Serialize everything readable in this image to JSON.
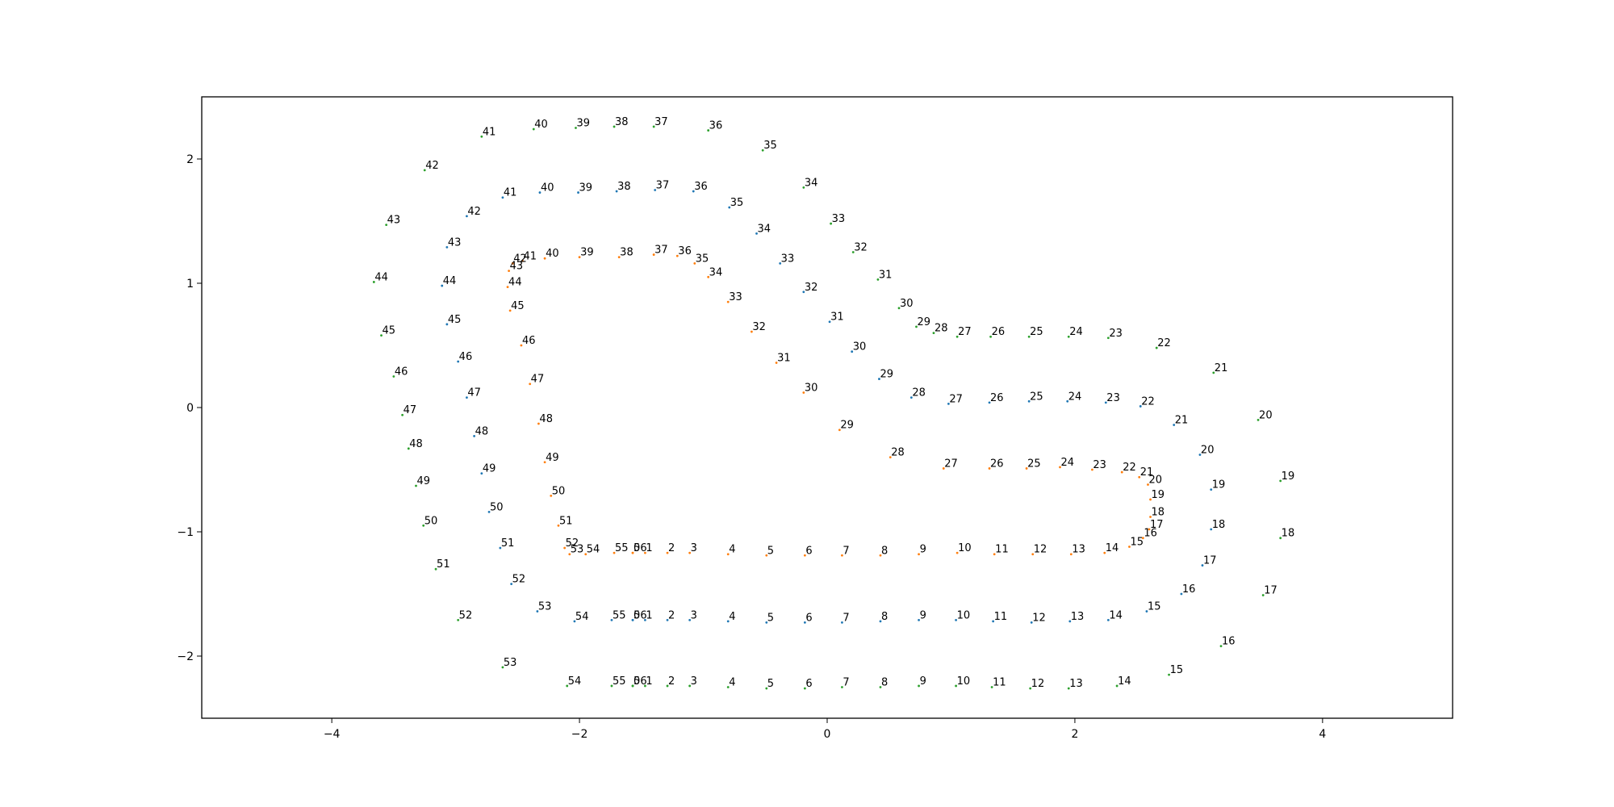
{
  "chart_data": {
    "type": "scatter",
    "title": "",
    "xlabel": "",
    "ylabel": "",
    "xlim": [
      -5.05,
      5.05
    ],
    "ylim": [
      -2.5,
      2.5
    ],
    "xticks": [
      -4,
      -2,
      0,
      2,
      4
    ],
    "yticks": [
      -2,
      -1,
      0,
      1,
      2
    ],
    "grid": false,
    "legend": false,
    "series": [
      {
        "color": "#ff7f0e",
        "points": [
          [
            -1.47,
            -1.17,
            "1"
          ],
          [
            -1.29,
            -1.17,
            "2"
          ],
          [
            -1.11,
            -1.17,
            "3"
          ],
          [
            -0.8,
            -1.18,
            "4"
          ],
          [
            -0.49,
            -1.19,
            "5"
          ],
          [
            -0.18,
            -1.19,
            "6"
          ],
          [
            0.12,
            -1.19,
            "7"
          ],
          [
            0.43,
            -1.19,
            "8"
          ],
          [
            0.74,
            -1.18,
            "9"
          ],
          [
            1.05,
            -1.17,
            "10"
          ],
          [
            1.35,
            -1.18,
            "11"
          ],
          [
            1.66,
            -1.18,
            "12"
          ],
          [
            1.97,
            -1.18,
            "13"
          ],
          [
            2.24,
            -1.17,
            "14"
          ],
          [
            2.44,
            -1.12,
            "15"
          ],
          [
            2.55,
            -1.05,
            "16"
          ],
          [
            2.6,
            -0.98,
            "17"
          ],
          [
            2.61,
            -0.88,
            "18"
          ],
          [
            2.61,
            -0.74,
            "19"
          ],
          [
            2.59,
            -0.62,
            "20"
          ],
          [
            2.52,
            -0.56,
            "21"
          ],
          [
            2.38,
            -0.52,
            "22"
          ],
          [
            2.14,
            -0.5,
            "23"
          ],
          [
            1.88,
            -0.48,
            "24"
          ],
          [
            1.61,
            -0.49,
            "25"
          ],
          [
            1.31,
            -0.49,
            "26"
          ],
          [
            0.94,
            -0.49,
            "27"
          ],
          [
            0.51,
            -0.4,
            "28"
          ],
          [
            0.1,
            -0.18,
            "29"
          ],
          [
            -0.19,
            0.12,
            "30"
          ],
          [
            -0.41,
            0.36,
            "31"
          ],
          [
            -0.61,
            0.61,
            "32"
          ],
          [
            -0.8,
            0.85,
            "33"
          ],
          [
            -0.96,
            1.05,
            "34"
          ],
          [
            -1.07,
            1.16,
            "35"
          ],
          [
            -1.21,
            1.22,
            "36"
          ],
          [
            -1.4,
            1.23,
            "37"
          ],
          [
            -1.68,
            1.21,
            "38"
          ],
          [
            -2.0,
            1.21,
            "39"
          ],
          [
            -2.28,
            1.2,
            "40"
          ],
          [
            -2.46,
            1.18,
            "41"
          ],
          [
            -2.54,
            1.16,
            "42"
          ],
          [
            -2.57,
            1.1,
            "43"
          ],
          [
            -2.58,
            0.97,
            "44"
          ],
          [
            -2.56,
            0.78,
            "45"
          ],
          [
            -2.47,
            0.5,
            "46"
          ],
          [
            -2.4,
            0.19,
            "47"
          ],
          [
            -2.33,
            -0.13,
            "48"
          ],
          [
            -2.28,
            -0.44,
            "49"
          ],
          [
            -2.23,
            -0.71,
            "50"
          ],
          [
            -2.17,
            -0.95,
            "51"
          ],
          [
            -2.12,
            -1.13,
            "52"
          ],
          [
            -2.08,
            -1.18,
            "53"
          ],
          [
            -1.95,
            -1.18,
            "54"
          ],
          [
            -1.72,
            -1.17,
            "55"
          ],
          [
            -1.57,
            -1.17,
            "56"
          ],
          [
            -1.57,
            -1.17,
            "0"
          ]
        ]
      },
      {
        "color": "#1f77b4",
        "points": [
          [
            -1.47,
            -1.71,
            "1"
          ],
          [
            -1.29,
            -1.71,
            "2"
          ],
          [
            -1.11,
            -1.71,
            "3"
          ],
          [
            -0.8,
            -1.72,
            "4"
          ],
          [
            -0.49,
            -1.73,
            "5"
          ],
          [
            -0.18,
            -1.73,
            "6"
          ],
          [
            0.12,
            -1.73,
            "7"
          ],
          [
            0.43,
            -1.72,
            "8"
          ],
          [
            0.74,
            -1.71,
            "9"
          ],
          [
            1.04,
            -1.71,
            "10"
          ],
          [
            1.34,
            -1.72,
            "11"
          ],
          [
            1.65,
            -1.73,
            "12"
          ],
          [
            1.96,
            -1.72,
            "13"
          ],
          [
            2.27,
            -1.71,
            "14"
          ],
          [
            2.58,
            -1.64,
            "15"
          ],
          [
            2.86,
            -1.5,
            "16"
          ],
          [
            3.03,
            -1.27,
            "17"
          ],
          [
            3.1,
            -0.98,
            "18"
          ],
          [
            3.1,
            -0.66,
            "19"
          ],
          [
            3.01,
            -0.38,
            "20"
          ],
          [
            2.8,
            -0.14,
            "21"
          ],
          [
            2.53,
            0.01,
            "22"
          ],
          [
            2.25,
            0.04,
            "23"
          ],
          [
            1.94,
            0.05,
            "24"
          ],
          [
            1.63,
            0.05,
            "25"
          ],
          [
            1.31,
            0.04,
            "26"
          ],
          [
            0.98,
            0.03,
            "27"
          ],
          [
            0.68,
            0.08,
            "28"
          ],
          [
            0.42,
            0.23,
            "29"
          ],
          [
            0.2,
            0.45,
            "30"
          ],
          [
            0.02,
            0.69,
            "31"
          ],
          [
            -0.19,
            0.93,
            "32"
          ],
          [
            -0.38,
            1.16,
            "33"
          ],
          [
            -0.57,
            1.4,
            "34"
          ],
          [
            -0.79,
            1.61,
            "35"
          ],
          [
            -1.08,
            1.74,
            "36"
          ],
          [
            -1.39,
            1.75,
            "37"
          ],
          [
            -1.7,
            1.74,
            "38"
          ],
          [
            -2.01,
            1.73,
            "39"
          ],
          [
            -2.32,
            1.73,
            "40"
          ],
          [
            -2.62,
            1.69,
            "41"
          ],
          [
            -2.91,
            1.54,
            "42"
          ],
          [
            -3.07,
            1.29,
            "43"
          ],
          [
            -3.11,
            0.98,
            "44"
          ],
          [
            -3.07,
            0.67,
            "45"
          ],
          [
            -2.98,
            0.37,
            "46"
          ],
          [
            -2.91,
            0.08,
            "47"
          ],
          [
            -2.85,
            -0.23,
            "48"
          ],
          [
            -2.79,
            -0.53,
            "49"
          ],
          [
            -2.73,
            -0.84,
            "50"
          ],
          [
            -2.64,
            -1.13,
            "51"
          ],
          [
            -2.55,
            -1.42,
            "52"
          ],
          [
            -2.34,
            -1.64,
            "53"
          ],
          [
            -2.04,
            -1.72,
            "54"
          ],
          [
            -1.74,
            -1.71,
            "55"
          ],
          [
            -1.57,
            -1.71,
            "56"
          ],
          [
            -1.57,
            -1.71,
            "0"
          ]
        ]
      },
      {
        "color": "#2ca02c",
        "points": [
          [
            -1.47,
            -2.24,
            "1"
          ],
          [
            -1.29,
            -2.24,
            "2"
          ],
          [
            -1.11,
            -2.24,
            "3"
          ],
          [
            -0.8,
            -2.25,
            "4"
          ],
          [
            -0.49,
            -2.26,
            "5"
          ],
          [
            -0.18,
            -2.26,
            "6"
          ],
          [
            0.12,
            -2.25,
            "7"
          ],
          [
            0.43,
            -2.25,
            "8"
          ],
          [
            0.74,
            -2.24,
            "9"
          ],
          [
            1.04,
            -2.24,
            "10"
          ],
          [
            1.33,
            -2.25,
            "11"
          ],
          [
            1.64,
            -2.26,
            "12"
          ],
          [
            1.95,
            -2.26,
            "13"
          ],
          [
            2.34,
            -2.24,
            "14"
          ],
          [
            2.76,
            -2.15,
            "15"
          ],
          [
            3.18,
            -1.92,
            "16"
          ],
          [
            3.52,
            -1.51,
            "17"
          ],
          [
            3.66,
            -1.05,
            "18"
          ],
          [
            3.66,
            -0.59,
            "19"
          ],
          [
            3.48,
            -0.1,
            "20"
          ],
          [
            3.12,
            0.28,
            "21"
          ],
          [
            2.66,
            0.48,
            "22"
          ],
          [
            2.27,
            0.56,
            "23"
          ],
          [
            1.95,
            0.57,
            "24"
          ],
          [
            1.63,
            0.57,
            "25"
          ],
          [
            1.32,
            0.57,
            "26"
          ],
          [
            1.05,
            0.57,
            "27"
          ],
          [
            0.86,
            0.6,
            "28"
          ],
          [
            0.72,
            0.65,
            "29"
          ],
          [
            0.58,
            0.8,
            "30"
          ],
          [
            0.41,
            1.03,
            "31"
          ],
          [
            0.21,
            1.25,
            "32"
          ],
          [
            0.03,
            1.48,
            "33"
          ],
          [
            -0.19,
            1.77,
            "34"
          ],
          [
            -0.52,
            2.07,
            "35"
          ],
          [
            -0.96,
            2.23,
            "36"
          ],
          [
            -1.4,
            2.26,
            "37"
          ],
          [
            -1.72,
            2.26,
            "38"
          ],
          [
            -2.03,
            2.25,
            "39"
          ],
          [
            -2.37,
            2.24,
            "40"
          ],
          [
            -2.79,
            2.18,
            "41"
          ],
          [
            -3.25,
            1.91,
            "42"
          ],
          [
            -3.56,
            1.47,
            "43"
          ],
          [
            -3.66,
            1.01,
            "44"
          ],
          [
            -3.6,
            0.58,
            "45"
          ],
          [
            -3.5,
            0.25,
            "46"
          ],
          [
            -3.43,
            -0.06,
            "47"
          ],
          [
            -3.38,
            -0.33,
            "48"
          ],
          [
            -3.32,
            -0.63,
            "49"
          ],
          [
            -3.26,
            -0.95,
            "50"
          ],
          [
            -3.16,
            -1.3,
            "51"
          ],
          [
            -2.98,
            -1.71,
            "52"
          ],
          [
            -2.62,
            -2.09,
            "53"
          ],
          [
            -2.1,
            -2.24,
            "54"
          ],
          [
            -1.74,
            -2.24,
            "55"
          ],
          [
            -1.57,
            -2.24,
            "56"
          ],
          [
            -1.57,
            -2.24,
            "0"
          ]
        ]
      }
    ]
  }
}
